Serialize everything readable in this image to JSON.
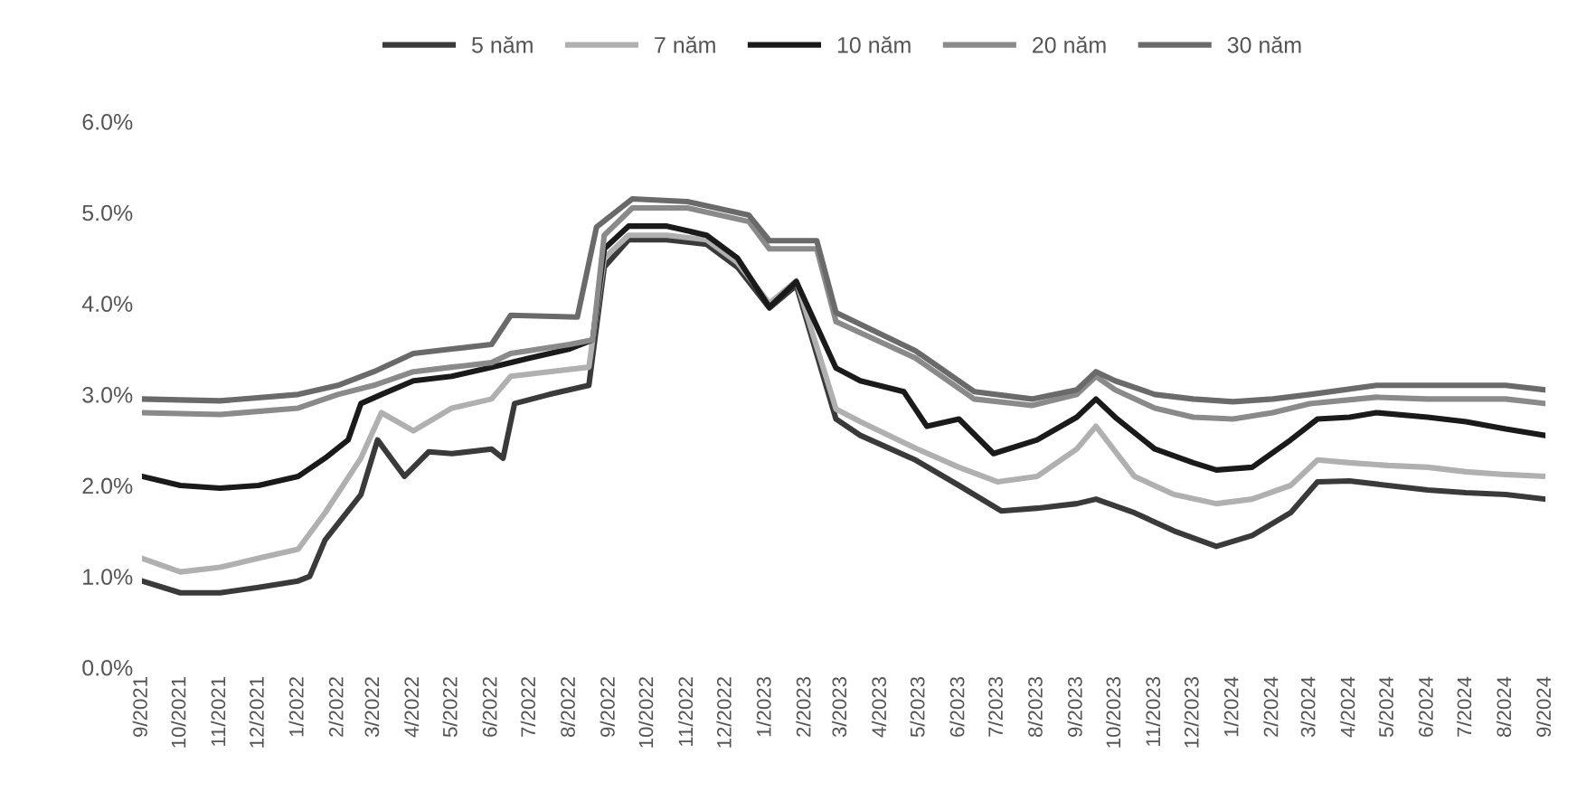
{
  "chart_data": {
    "type": "line",
    "xlim": [
      "2021-09",
      "2024-09"
    ],
    "xticks": [
      {
        "value": "2021-09",
        "label": "9/2021"
      },
      {
        "value": "2021-10",
        "label": "10/2021"
      },
      {
        "value": "2021-11",
        "label": "11/2021"
      },
      {
        "value": "2021-12",
        "label": "12/2021"
      },
      {
        "value": "2022-01",
        "label": "1/2022"
      },
      {
        "value": "2022-02",
        "label": "2/2022"
      },
      {
        "value": "2022-03",
        "label": "3/2022"
      },
      {
        "value": "2022-04",
        "label": "4/2022"
      },
      {
        "value": "2022-05",
        "label": "5/2022"
      },
      {
        "value": "2022-06",
        "label": "6/2022"
      },
      {
        "value": "2022-07",
        "label": "7/2022"
      },
      {
        "value": "2022-08",
        "label": "8/2022"
      },
      {
        "value": "2022-09",
        "label": "9/2022"
      },
      {
        "value": "2022-10",
        "label": "10/2022"
      },
      {
        "value": "2022-11",
        "label": "11/2022"
      },
      {
        "value": "2022-12",
        "label": "12/2022"
      },
      {
        "value": "2023-01",
        "label": "1/2023"
      },
      {
        "value": "2023-02",
        "label": "2/2023"
      },
      {
        "value": "2023-03",
        "label": "3/2023"
      },
      {
        "value": "2023-04",
        "label": "4/2023"
      },
      {
        "value": "2023-05",
        "label": "5/2023"
      },
      {
        "value": "2023-06",
        "label": "6/2023"
      },
      {
        "value": "2023-07",
        "label": "7/2023"
      },
      {
        "value": "2023-08",
        "label": "8/2023"
      },
      {
        "value": "2023-09",
        "label": "9/2023"
      },
      {
        "value": "2023-10",
        "label": "10/2023"
      },
      {
        "value": "2023-11",
        "label": "11/2023"
      },
      {
        "value": "2023-12",
        "label": "12/2023"
      },
      {
        "value": "2024-01",
        "label": "1/2024"
      },
      {
        "value": "2024-02",
        "label": "2/2024"
      },
      {
        "value": "2024-03",
        "label": "3/2024"
      },
      {
        "value": "2024-04",
        "label": "4/2024"
      },
      {
        "value": "2024-05",
        "label": "5/2024"
      },
      {
        "value": "2024-06",
        "label": "6/2024"
      },
      {
        "value": "2024-07",
        "label": "7/2024"
      },
      {
        "value": "2024-08",
        "label": "8/2024"
      },
      {
        "value": "2024-09",
        "label": "9/2024"
      }
    ],
    "ylim": [
      0,
      6
    ],
    "yticks": [
      {
        "value": 0,
        "label": "0.0%"
      },
      {
        "value": 1,
        "label": "1.0%"
      },
      {
        "value": 2,
        "label": "2.0%"
      },
      {
        "value": 3,
        "label": "3.0%"
      },
      {
        "value": 4,
        "label": "4.0%"
      },
      {
        "value": 5,
        "label": "5.0%"
      },
      {
        "value": 6,
        "label": "6.0%"
      }
    ],
    "grid": false,
    "legend": "top",
    "series": [
      {
        "name": "5 năm",
        "color": "#3a3a3a",
        "x": [
          "2021-09-01",
          "2021-10-01",
          "2021-11-01",
          "2021-12-01",
          "2022-01-01",
          "2022-01-10",
          "2022-01-22",
          "2022-02-19",
          "2022-03-04",
          "2022-03-25",
          "2022-04-13",
          "2022-05-01",
          "2022-06-01",
          "2022-06-10",
          "2022-06-19",
          "2022-07-16",
          "2022-08-16",
          "2022-08-28",
          "2022-09-16",
          "2022-10-16",
          "2022-11-16",
          "2022-12-10",
          "2023-01-04",
          "2023-01-25",
          "2023-02-25",
          "2023-03-16",
          "2023-04-28",
          "2023-06-01",
          "2023-07-04",
          "2023-08-01",
          "2023-09-01",
          "2023-09-16",
          "2023-10-16",
          "2023-11-16",
          "2023-12-19",
          "2024-01-16",
          "2024-02-15",
          "2024-03-07",
          "2024-04-01",
          "2024-05-01",
          "2024-06-01",
          "2024-07-01",
          "2024-08-01",
          "2024-09-01"
        ],
        "values": [
          0.95,
          0.82,
          0.82,
          0.88,
          0.95,
          1.0,
          1.4,
          1.9,
          2.5,
          2.1,
          2.37,
          2.35,
          2.4,
          2.3,
          2.9,
          3.0,
          3.1,
          4.4,
          4.7,
          4.7,
          4.65,
          4.4,
          3.95,
          4.2,
          2.73,
          2.55,
          2.28,
          2.0,
          1.72,
          1.75,
          1.8,
          1.85,
          1.7,
          1.5,
          1.33,
          1.45,
          1.7,
          2.04,
          2.05,
          2.0,
          1.95,
          1.92,
          1.9,
          1.85
        ]
      },
      {
        "name": "7 năm",
        "color": "#b0b0b0",
        "x": [
          "2021-09-01",
          "2021-10-01",
          "2021-11-01",
          "2021-12-01",
          "2022-01-01",
          "2022-01-22",
          "2022-02-19",
          "2022-03-07",
          "2022-04-01",
          "2022-05-01",
          "2022-06-01",
          "2022-06-16",
          "2022-07-16",
          "2022-08-16",
          "2022-08-28",
          "2022-09-16",
          "2022-10-16",
          "2022-11-16",
          "2022-12-10",
          "2023-01-04",
          "2023-01-25",
          "2023-02-25",
          "2023-03-16",
          "2023-04-28",
          "2023-06-01",
          "2023-07-01",
          "2023-08-01",
          "2023-09-01",
          "2023-09-16",
          "2023-10-16",
          "2023-11-16",
          "2023-12-19",
          "2024-01-16",
          "2024-02-15",
          "2024-03-07",
          "2024-04-01",
          "2024-05-01",
          "2024-06-01",
          "2024-07-01",
          "2024-08-01",
          "2024-09-01"
        ],
        "values": [
          1.2,
          1.05,
          1.1,
          1.2,
          1.3,
          1.7,
          2.3,
          2.8,
          2.6,
          2.85,
          2.95,
          3.2,
          3.25,
          3.3,
          4.5,
          4.75,
          4.75,
          4.7,
          4.45,
          4.0,
          4.25,
          2.84,
          2.7,
          2.41,
          2.2,
          2.04,
          2.1,
          2.4,
          2.65,
          2.1,
          1.9,
          1.8,
          1.85,
          2.0,
          2.28,
          2.25,
          2.22,
          2.2,
          2.15,
          2.12,
          2.1
        ]
      },
      {
        "name": "10 năm",
        "color": "#1a1a1a",
        "x": [
          "2021-09-01",
          "2021-10-01",
          "2021-11-01",
          "2021-12-01",
          "2022-01-01",
          "2022-01-22",
          "2022-02-09",
          "2022-02-19",
          "2022-03-07",
          "2022-04-01",
          "2022-05-01",
          "2022-06-01",
          "2022-07-01",
          "2022-08-01",
          "2022-08-19",
          "2022-08-28",
          "2022-09-16",
          "2022-10-16",
          "2022-11-16",
          "2022-12-10",
          "2023-01-04",
          "2023-01-25",
          "2023-02-25",
          "2023-03-16",
          "2023-04-19",
          "2023-05-07",
          "2023-06-01",
          "2023-06-28",
          "2023-08-01",
          "2023-09-01",
          "2023-09-16",
          "2023-10-01",
          "2023-11-01",
          "2023-12-01",
          "2023-12-19",
          "2024-01-16",
          "2024-02-15",
          "2024-03-07",
          "2024-04-01",
          "2024-04-22",
          "2024-06-01",
          "2024-07-01",
          "2024-08-01",
          "2024-09-01"
        ],
        "values": [
          2.1,
          2.0,
          1.97,
          2.0,
          2.1,
          2.3,
          2.5,
          2.9,
          3.0,
          3.15,
          3.2,
          3.3,
          3.4,
          3.5,
          3.6,
          4.6,
          4.85,
          4.85,
          4.75,
          4.5,
          3.96,
          4.24,
          3.29,
          3.15,
          3.03,
          2.65,
          2.73,
          2.35,
          2.5,
          2.75,
          2.95,
          2.75,
          2.4,
          2.25,
          2.17,
          2.2,
          2.5,
          2.73,
          2.75,
          2.8,
          2.75,
          2.7,
          2.62,
          2.55
        ]
      },
      {
        "name": "20 năm",
        "color": "#8a8a8a",
        "x": [
          "2021-09-01",
          "2021-11-01",
          "2022-01-01",
          "2022-02-01",
          "2022-03-01",
          "2022-04-01",
          "2022-05-01",
          "2022-06-01",
          "2022-06-16",
          "2022-08-01",
          "2022-08-19",
          "2022-08-28",
          "2022-09-19",
          "2022-11-01",
          "2022-12-19",
          "2023-01-04",
          "2023-02-10",
          "2023-02-25",
          "2023-04-28",
          "2023-06-13",
          "2023-07-28",
          "2023-09-01",
          "2023-09-16",
          "2023-10-01",
          "2023-11-01",
          "2023-12-01",
          "2024-01-01",
          "2024-02-01",
          "2024-03-01",
          "2024-04-22",
          "2024-06-01",
          "2024-08-01",
          "2024-09-01"
        ],
        "values": [
          2.8,
          2.78,
          2.85,
          3.0,
          3.1,
          3.25,
          3.3,
          3.35,
          3.45,
          3.55,
          3.6,
          4.75,
          5.05,
          5.05,
          4.9,
          4.6,
          4.6,
          3.8,
          3.4,
          2.95,
          2.88,
          3.0,
          3.2,
          3.05,
          2.85,
          2.75,
          2.73,
          2.8,
          2.9,
          2.97,
          2.95,
          2.95,
          2.9
        ]
      },
      {
        "name": "30 năm",
        "color": "#6a6a6a",
        "x": [
          "2021-09-01",
          "2021-11-01",
          "2022-01-01",
          "2022-02-01",
          "2022-03-01",
          "2022-04-01",
          "2022-05-01",
          "2022-06-01",
          "2022-06-16",
          "2022-08-07",
          "2022-08-22",
          "2022-09-19",
          "2022-11-01",
          "2022-12-19",
          "2023-01-04",
          "2023-02-10",
          "2023-02-25",
          "2023-04-28",
          "2023-06-13",
          "2023-07-28",
          "2023-09-01",
          "2023-09-16",
          "2023-10-01",
          "2023-11-01",
          "2023-12-01",
          "2024-01-01",
          "2024-02-01",
          "2024-03-01",
          "2024-04-22",
          "2024-06-01",
          "2024-08-01",
          "2024-09-01"
        ],
        "values": [
          2.95,
          2.93,
          3.0,
          3.1,
          3.25,
          3.45,
          3.5,
          3.55,
          3.87,
          3.85,
          4.84,
          5.15,
          5.12,
          4.97,
          4.69,
          4.69,
          3.9,
          3.48,
          3.03,
          2.95,
          3.05,
          3.25,
          3.15,
          3.0,
          2.95,
          2.92,
          2.95,
          3.0,
          3.1,
          3.1,
          3.1,
          3.05
        ]
      }
    ]
  }
}
